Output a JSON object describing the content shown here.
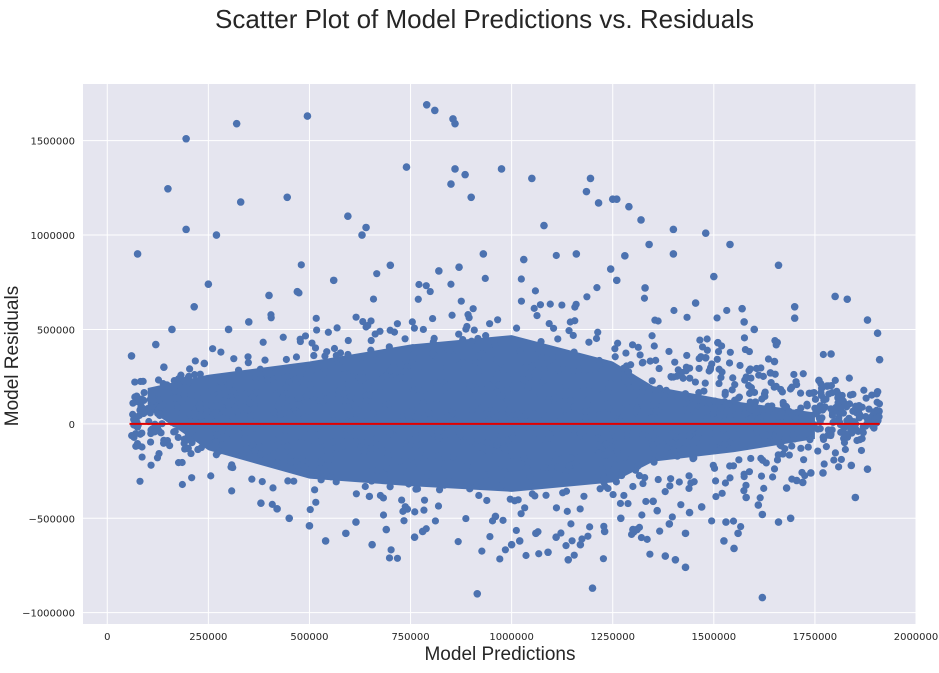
{
  "chart_data": {
    "type": "scatter",
    "title": "Scatter Plot of Model Predictions vs. Residuals",
    "xlabel": "Model Predictions",
    "ylabel": "Model Residuals",
    "xlim": [
      -60000,
      2000000
    ],
    "ylim": [
      -1060000,
      1800000
    ],
    "xticks": [
      0,
      250000,
      500000,
      750000,
      1000000,
      1250000,
      1500000,
      1750000,
      2000000
    ],
    "xtick_labels": [
      "0",
      "250000",
      "500000",
      "750000",
      "1000000",
      "1250000",
      "1500000",
      "1750000",
      "2000000"
    ],
    "yticks": [
      -1000000,
      -500000,
      0,
      500000,
      1000000,
      1500000
    ],
    "ytick_labels": [
      "−1000000",
      "−500000",
      "0",
      "500000",
      "1000000",
      "1500000"
    ],
    "grid": true,
    "colors": {
      "background": "#e5e5ef",
      "grid": "#ffffff",
      "points": "#4c72b0",
      "line": "#e00000"
    },
    "reference_line": {
      "y": 0,
      "x": [
        55000,
        1910000
      ],
      "color": "#e00000"
    },
    "series": [
      {
        "x": [
          790000,
          810000,
          855000,
          860000,
          860000,
          195000,
          320000,
          495000,
          150000,
          195000,
          75000,
          330000,
          445000,
          885000,
          900000,
          975000,
          1050000,
          1185000,
          1195000,
          1250000,
          1260000,
          1290000,
          1215000,
          1480000,
          1320000,
          1400000,
          1880000,
          1905000,
          1910000,
          1830000,
          1800000,
          1880000,
          1905000,
          1840000,
          1850000,
          1880000,
          915000,
          1200000,
          1620000,
          1430000,
          1405000,
          1380000,
          1550000,
          200000,
          160000,
          850000,
          595000,
          740000,
          630000,
          1570000,
          1080000,
          1160000,
          1245000,
          590000,
          1140000,
          780000,
          655000,
          500000,
          615000,
          240000,
          215000,
          270000,
          1600000,
          1700000,
          1780000,
          1540000,
          1660000,
          1500000,
          1330000,
          1260000,
          1030000,
          930000,
          870000,
          820000,
          700000,
          640000,
          560000,
          470000,
          400000,
          350000,
          300000,
          250000,
          1850000,
          1790000,
          1760000,
          1700000,
          1650000,
          1575000,
          1480000,
          1455000,
          1510000,
          1640000,
          1400000,
          1340000,
          1280000,
          1300000,
          120000,
          140000,
          110000,
          100000,
          60000,
          85000,
          1770000,
          1720000,
          1690000,
          1610000,
          1560000,
          1360000,
          1430000,
          1525000,
          1000000,
          960000,
          760000,
          690000,
          540000,
          450000,
          420000,
          380000,
          1020000,
          1090000,
          1170000,
          1230000,
          1110000,
          1060000,
          1660000,
          1620000,
          1580000,
          1530000,
          1470000,
          1440000,
          1390000,
          1350000,
          1310000,
          1270000,
          1740000,
          1705000,
          1680000,
          1820000
        ],
        "y": [
          1690000,
          1660000,
          1615000,
          1590000,
          1350000,
          1510000,
          1590000,
          1630000,
          1245000,
          1030000,
          900000,
          1175000,
          1200000,
          1320000,
          1200000,
          1350000,
          1300000,
          1230000,
          1300000,
          1190000,
          1190000,
          1150000,
          1170000,
          1010000,
          1080000,
          1030000,
          550000,
          480000,
          340000,
          660000,
          675000,
          0,
          170000,
          -220000,
          -390000,
          -240000,
          -900000,
          -870000,
          -920000,
          -760000,
          -720000,
          -700000,
          -660000,
          -130000,
          500000,
          1270000,
          1100000,
          1360000,
          1000000,
          610000,
          1050000,
          900000,
          820000,
          -580000,
          -720000,
          -570000,
          -640000,
          -540000,
          -520000,
          320000,
          620000,
          1000000,
          500000,
          560000,
          200000,
          950000,
          840000,
          780000,
          720000,
          760000,
          870000,
          900000,
          830000,
          810000,
          840000,
          1040000,
          760000,
          700000,
          680000,
          540000,
          500000,
          740000,
          0,
          370000,
          230000,
          620000,
          330000,
          540000,
          350000,
          640000,
          430000,
          270000,
          900000,
          950000,
          890000,
          -560000,
          420000,
          300000,
          150000,
          80000,
          360000,
          130000,
          -260000,
          -310000,
          -500000,
          -430000,
          -580000,
          -460000,
          -580000,
          -620000,
          -640000,
          -490000,
          -600000,
          -560000,
          -620000,
          -500000,
          -450000,
          -420000,
          -620000,
          -680000,
          -640000,
          -570000,
          -600000,
          -580000,
          -520000,
          -480000,
          -390000,
          -520000,
          -440000,
          -470000,
          -530000,
          -410000,
          -560000,
          -500000,
          -260000,
          -300000,
          -340000,
          120000
        ]
      }
    ]
  }
}
